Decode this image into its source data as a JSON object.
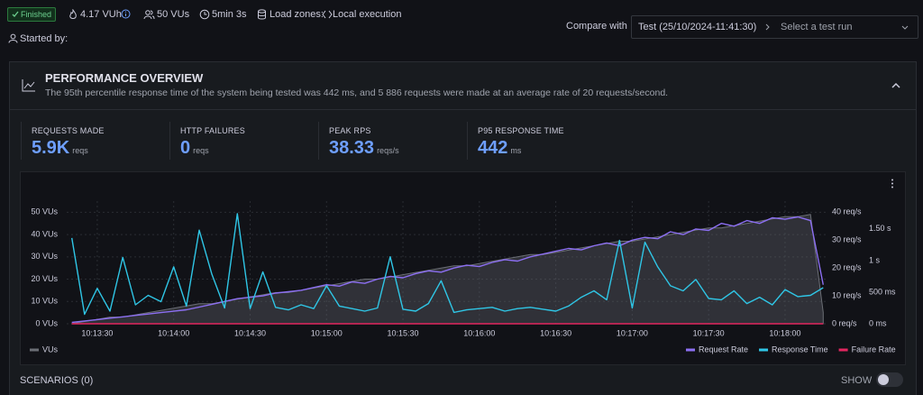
{
  "header": {
    "status": "Finished",
    "vuh": "4.17 VUh",
    "vus": "50 VUs",
    "duration": "5min 3s",
    "load_zones_label": "Load zones:",
    "load_zones_value": "Local execution",
    "started_by": "Started by:"
  },
  "compare": {
    "label": "Compare with",
    "test": "Test (25/10/2024-11:41:30)",
    "placeholder": "Select a test run"
  },
  "overview": {
    "title": "PERFORMANCE OVERVIEW",
    "description": "The 95th percentile response time of the system being tested was 442 ms, and 5 886 requests were made at an average rate of 20 requests/second.",
    "stats": [
      {
        "label": "REQUESTS MADE",
        "value": "5.9K",
        "unit": "reqs"
      },
      {
        "label": "HTTP FAILURES",
        "value": 0,
        "unit": "reqs"
      },
      {
        "label": "PEAK RPS",
        "value": 38.33,
        "unit": "reqs/s"
      },
      {
        "label": "P95 RESPONSE TIME",
        "value": 442,
        "unit": "ms"
      }
    ]
  },
  "chart_data": {
    "type": "line",
    "grid": true,
    "legend": "bottom",
    "x": [
      "10:13:20",
      "10:13:25",
      "10:13:30",
      "10:13:35",
      "10:13:40",
      "10:13:45",
      "10:13:50",
      "10:13:55",
      "10:14:00",
      "10:14:05",
      "10:14:10",
      "10:14:15",
      "10:14:20",
      "10:14:25",
      "10:14:30",
      "10:14:35",
      "10:14:40",
      "10:14:45",
      "10:14:50",
      "10:14:55",
      "10:15:00",
      "10:15:05",
      "10:15:10",
      "10:15:15",
      "10:15:20",
      "10:15:25",
      "10:15:30",
      "10:15:35",
      "10:15:40",
      "10:15:45",
      "10:15:50",
      "10:15:55",
      "10:16:00",
      "10:16:05",
      "10:16:10",
      "10:16:15",
      "10:16:20",
      "10:16:25",
      "10:16:30",
      "10:16:35",
      "10:16:40",
      "10:16:45",
      "10:16:50",
      "10:16:55",
      "10:17:00",
      "10:17:05",
      "10:17:10",
      "10:17:15",
      "10:17:20",
      "10:17:25",
      "10:17:30",
      "10:17:35",
      "10:17:40",
      "10:17:45",
      "10:17:50",
      "10:17:55",
      "10:18:00",
      "10:18:05",
      "10:18:10",
      "10:18:15"
    ],
    "xlim": [
      "10:13:18",
      "10:18:17"
    ],
    "xticks": [
      "10:13:30",
      "10:14:00",
      "10:14:30",
      "10:15:00",
      "10:15:30",
      "10:16:00",
      "10:16:30",
      "10:17:00",
      "10:17:30",
      "10:18:00"
    ],
    "ylim": [
      0,
      55
    ],
    "yticks": [
      {
        "value": 0,
        "label": "0 VUs"
      },
      {
        "value": 10,
        "label": "10 VUs"
      },
      {
        "value": 20,
        "label": "20 VUs"
      },
      {
        "value": 30,
        "label": "30 VUs"
      },
      {
        "value": 40,
        "label": "40 VUs"
      },
      {
        "value": 50,
        "label": "50 VUs"
      }
    ],
    "y2lim": [
      0,
      44
    ],
    "y2ticks": [
      {
        "value": 0,
        "label": "0 req/s"
      },
      {
        "value": 10,
        "label": "10 req/s"
      },
      {
        "value": 20,
        "label": "20 req/s"
      },
      {
        "value": 30,
        "label": "30 req/s"
      },
      {
        "value": 40,
        "label": "40 req/s"
      }
    ],
    "y3lim": [
      0,
      1940
    ],
    "y3ticks": [
      {
        "value": 0,
        "label": "0 ms"
      },
      {
        "value": 500,
        "label": "500 ms"
      },
      {
        "value": 1000,
        "label": "1 s"
      },
      {
        "value": 1500,
        "label": "1.50 s"
      }
    ],
    "series": [
      {
        "name": "VUs",
        "color": "#6b6e75",
        "axis": "y",
        "area": true,
        "values": [
          0,
          1,
          2,
          3,
          3,
          4,
          5,
          6,
          7,
          8,
          9,
          9,
          10,
          11,
          12,
          13,
          14,
          14,
          15,
          16,
          17,
          18,
          19,
          20,
          20,
          21,
          22,
          23,
          24,
          25,
          26,
          26,
          27,
          28,
          29,
          30,
          31,
          31,
          32,
          33,
          34,
          35,
          36,
          37,
          37,
          38,
          39,
          40,
          41,
          42,
          43,
          43,
          44,
          45,
          46,
          47,
          48,
          48,
          49,
          5
        ]
      },
      {
        "name": "Request Rate",
        "color": "#8c6ff2",
        "axis": "y2",
        "values": [
          0.5,
          1,
          1.5,
          2,
          2.5,
          3,
          3.5,
          4,
          4.5,
          5,
          6,
          7,
          8,
          9,
          9.5,
          10,
          11,
          11.5,
          12,
          13,
          14,
          13.5,
          15,
          14.5,
          16,
          17,
          16.5,
          18,
          19,
          18.5,
          20,
          21,
          20.5,
          22,
          23,
          22.5,
          24,
          25,
          26,
          27,
          26.5,
          28,
          29,
          28,
          30,
          31,
          30.5,
          33,
          32,
          34,
          33.5,
          36,
          35,
          37,
          36,
          38,
          37.5,
          38.33,
          37,
          14
        ]
      },
      {
        "name": "Response Time",
        "color": "#2fc6e6",
        "axis": "y3",
        "values": [
          1357,
          150,
          560,
          200,
          1050,
          300,
          450,
          350,
          900,
          280,
          1480,
          780,
          250,
          1740,
          240,
          820,
          260,
          220,
          300,
          240,
          600,
          280,
          240,
          200,
          250,
          1060,
          230,
          200,
          320,
          680,
          180,
          220,
          240,
          260,
          200,
          240,
          260,
          230,
          200,
          280,
          420,
          520,
          380,
          1320,
          250,
          1290,
          900,
          600,
          520,
          700,
          400,
          380,
          520,
          320,
          420,
          300,
          540,
          430,
          450,
          570
        ]
      },
      {
        "name": "Failure Rate",
        "color": "#e2265f",
        "axis": "y2",
        "values": [
          0,
          0,
          0,
          0,
          0,
          0,
          0,
          0,
          0,
          0,
          0,
          0,
          0,
          0,
          0,
          0,
          0,
          0,
          0,
          0,
          0,
          0,
          0,
          0,
          0,
          0,
          0,
          0,
          0,
          0,
          0,
          0,
          0,
          0,
          0,
          0,
          0,
          0,
          0,
          0,
          0,
          0,
          0,
          0,
          0,
          0,
          0,
          0,
          0,
          0,
          0,
          0,
          0,
          0,
          0,
          0,
          0,
          0,
          0,
          0
        ]
      }
    ]
  },
  "scenarios": {
    "title": "SCENARIOS (0)",
    "toggle": "SHOW"
  }
}
